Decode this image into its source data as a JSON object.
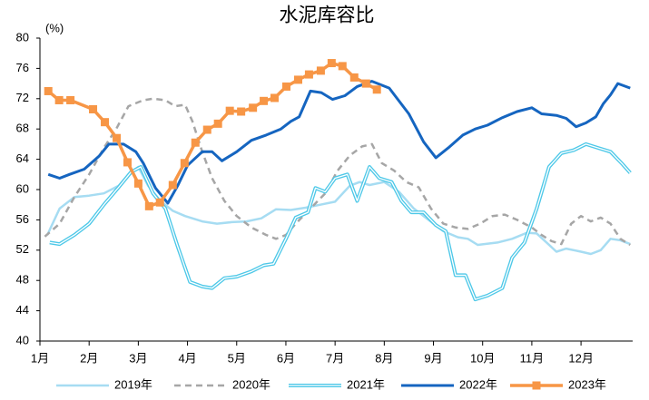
{
  "chart_data": {
    "type": "line",
    "title": "水泥库容比",
    "ylabel": "(%)",
    "xlim": [
      1,
      13.05
    ],
    "xticks": [
      {
        "value": 1,
        "label": "1月"
      },
      {
        "value": 2,
        "label": "2月"
      },
      {
        "value": 3,
        "label": "3月"
      },
      {
        "value": 4,
        "label": "4月"
      },
      {
        "value": 5,
        "label": "5月"
      },
      {
        "value": 6,
        "label": "6月"
      },
      {
        "value": 7,
        "label": "7月"
      },
      {
        "value": 8,
        "label": "8月"
      },
      {
        "value": 9,
        "label": "9月"
      },
      {
        "value": 10,
        "label": "10月"
      },
      {
        "value": 11,
        "label": "11月"
      },
      {
        "value": 12,
        "label": "12月"
      }
    ],
    "ylim": [
      40,
      80
    ],
    "yticks": [
      40,
      44,
      48,
      52,
      56,
      60,
      64,
      68,
      72,
      76,
      80
    ],
    "series": [
      {
        "name": "2019年",
        "color": "#a6dcf2",
        "style": "solid",
        "width": 2.5,
        "x": [
          1.15,
          1.4,
          1.7,
          2.0,
          2.3,
          2.6,
          2.8,
          3.0,
          3.2,
          3.45,
          3.7,
          3.95,
          4.3,
          4.6,
          4.9,
          5.2,
          5.5,
          5.8,
          6.1,
          6.4,
          6.7,
          7.0,
          7.3,
          7.5,
          7.7,
          8.0,
          8.3,
          8.6,
          8.9,
          9.2,
          9.5,
          9.7,
          9.9,
          10.3,
          10.6,
          10.9,
          11.1,
          11.3,
          11.5,
          11.7,
          12.0,
          12.2,
          12.4,
          12.6,
          12.8,
          13.0
        ],
        "values": [
          54.0,
          57.5,
          59.0,
          59.2,
          59.5,
          60.5,
          62.0,
          63.0,
          60.5,
          58.5,
          57.2,
          56.5,
          55.8,
          55.5,
          55.7,
          55.8,
          56.2,
          57.4,
          57.3,
          57.6,
          58.0,
          58.4,
          60.5,
          61.0,
          60.6,
          61.0,
          59.7,
          57.5,
          56.0,
          54.5,
          53.7,
          53.5,
          52.7,
          53.0,
          53.5,
          54.3,
          54.2,
          53.0,
          51.8,
          52.2,
          51.8,
          51.5,
          52.0,
          53.5,
          53.3,
          52.8
        ]
      },
      {
        "name": "2020年",
        "color": "#a6a6a6",
        "style": "dashed",
        "width": 2.5,
        "x": [
          1.1,
          1.4,
          1.7,
          2.0,
          2.3,
          2.55,
          2.8,
          3.1,
          3.3,
          3.55,
          3.75,
          3.95,
          4.1,
          4.3,
          4.5,
          4.75,
          5.0,
          5.3,
          5.6,
          5.8,
          6.0,
          6.2,
          6.5,
          6.8,
          7.05,
          7.3,
          7.55,
          7.75,
          7.95,
          8.2,
          8.45,
          8.7,
          8.95,
          9.2,
          9.45,
          9.7,
          9.95,
          10.2,
          10.45,
          10.7,
          11.0,
          11.2,
          11.4,
          11.6,
          11.8,
          12.0,
          12.2,
          12.4,
          12.6,
          12.8,
          13.0
        ],
        "values": [
          53.8,
          55.5,
          59.0,
          62.0,
          65.5,
          68.0,
          71.0,
          71.8,
          72.0,
          71.8,
          71.0,
          71.2,
          69.0,
          65.0,
          61.5,
          58.5,
          56.5,
          55.0,
          54.0,
          53.5,
          54.0,
          55.5,
          57.5,
          59.5,
          62.5,
          64.5,
          65.7,
          66.0,
          63.5,
          62.5,
          61.0,
          60.3,
          57.5,
          55.5,
          55.0,
          54.8,
          55.5,
          56.5,
          56.7,
          56.0,
          55.0,
          54.0,
          53.2,
          52.8,
          55.5,
          56.5,
          55.8,
          56.3,
          55.5,
          53.5,
          52.7
        ]
      },
      {
        "name": "2021年",
        "color": "#4dc8e8",
        "style": "double",
        "width": 4,
        "x": [
          1.2,
          1.4,
          1.7,
          2.0,
          2.3,
          2.6,
          2.85,
          3.05,
          3.3,
          3.55,
          3.8,
          4.05,
          4.3,
          4.5,
          4.75,
          5.0,
          5.3,
          5.55,
          5.75,
          6.0,
          6.2,
          6.45,
          6.6,
          6.8,
          7.0,
          7.25,
          7.45,
          7.7,
          7.9,
          8.15,
          8.35,
          8.55,
          8.8,
          9.05,
          9.25,
          9.45,
          9.65,
          9.85,
          10.1,
          10.4,
          10.6,
          10.85,
          11.1,
          11.35,
          11.6,
          11.85,
          12.1,
          12.35,
          12.6,
          12.85,
          13.0
        ],
        "values": [
          53.0,
          52.8,
          54.0,
          55.5,
          58.0,
          60.3,
          62.3,
          63.0,
          59.5,
          57.5,
          52.5,
          47.8,
          47.2,
          47.0,
          48.3,
          48.5,
          49.2,
          50.0,
          50.2,
          53.5,
          56.3,
          57.0,
          60.2,
          59.7,
          61.5,
          62.0,
          58.5,
          63.0,
          61.5,
          61.0,
          58.5,
          57.0,
          57.0,
          55.3,
          54.5,
          48.7,
          48.7,
          45.5,
          46.0,
          47.0,
          51.0,
          53.0,
          57.5,
          63.0,
          64.8,
          65.2,
          66.0,
          65.5,
          65.0,
          63.3,
          62.2
        ]
      },
      {
        "name": "2022年",
        "color": "#1565c0",
        "style": "solid",
        "width": 3,
        "x": [
          1.17,
          1.4,
          1.6,
          1.9,
          2.2,
          2.4,
          2.7,
          2.95,
          3.1,
          3.35,
          3.6,
          3.8,
          4.0,
          4.3,
          4.5,
          4.7,
          5.0,
          5.3,
          5.6,
          5.9,
          6.1,
          6.27,
          6.5,
          6.72,
          6.95,
          7.2,
          7.45,
          7.75,
          8.1,
          8.5,
          8.8,
          9.05,
          9.3,
          9.6,
          9.85,
          10.1,
          10.4,
          10.7,
          11.0,
          11.2,
          11.5,
          11.7,
          11.9,
          12.1,
          12.3,
          12.45,
          12.6,
          12.75,
          13.0
        ],
        "values": [
          62.0,
          61.5,
          62.0,
          62.7,
          64.4,
          66.0,
          66.0,
          65.0,
          63.5,
          60.2,
          58.2,
          60.5,
          63.2,
          65.0,
          65.0,
          63.8,
          65.0,
          66.5,
          67.2,
          68.0,
          69.0,
          69.6,
          73.0,
          72.8,
          71.9,
          72.4,
          73.6,
          74.3,
          73.4,
          70.0,
          66.3,
          64.2,
          65.5,
          67.2,
          68.0,
          68.5,
          69.5,
          70.3,
          70.8,
          70.0,
          69.8,
          69.4,
          68.3,
          68.8,
          69.6,
          71.3,
          72.5,
          74.0,
          73.4
        ]
      },
      {
        "name": "2023年",
        "color": "#f79646",
        "style": "solid",
        "width": 3.5,
        "marker": "square",
        "x": [
          1.17,
          1.39,
          1.62,
          2.08,
          2.32,
          2.56,
          2.78,
          3.0,
          3.22,
          3.44,
          3.7,
          3.94,
          4.16,
          4.4,
          4.62,
          4.86,
          5.09,
          5.33,
          5.55,
          5.77,
          6.01,
          6.25,
          6.47,
          6.71,
          6.93,
          7.15,
          7.39,
          7.63,
          7.85
        ],
        "values": [
          73.0,
          71.8,
          71.8,
          70.6,
          68.9,
          66.8,
          63.6,
          60.8,
          57.8,
          58.3,
          60.6,
          63.5,
          66.2,
          67.9,
          68.7,
          70.4,
          70.3,
          70.8,
          71.7,
          72.1,
          73.6,
          74.5,
          75.2,
          75.7,
          76.7,
          76.3,
          74.8,
          74.0,
          73.2
        ]
      }
    ]
  }
}
